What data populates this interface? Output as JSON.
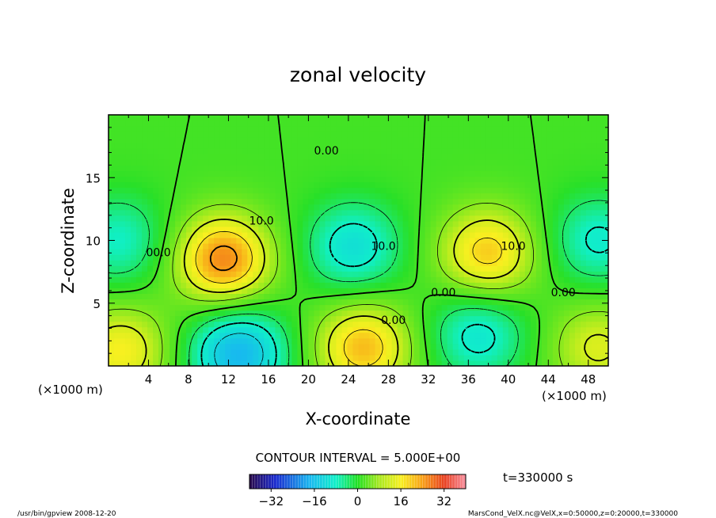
{
  "chart_data": {
    "type": "heatmap",
    "title": "zonal velocity",
    "xlabel": "X-coordinate",
    "ylabel": "Z-coordinate",
    "x_unit_label": "(×1000 m)",
    "y_unit_label": "(×1000 m)",
    "xlim": [
      0,
      50
    ],
    "ylim": [
      0,
      20
    ],
    "x_ticks": [
      "4",
      "8",
      "12",
      "16",
      "20",
      "24",
      "28",
      "32",
      "36",
      "40",
      "44",
      "48"
    ],
    "y_ticks": [
      "5",
      "10",
      "15"
    ],
    "contour_interval_text": "CONTOUR INTERVAL = 5.000E+00",
    "time_text": "t=330000 s",
    "colorbar": {
      "range": [
        -40,
        40
      ],
      "ticks": [
        "−32",
        "−16",
        "0",
        "16",
        "32"
      ],
      "tick_values": [
        -32,
        -16,
        0,
        16,
        32
      ]
    },
    "contour_labels": [
      {
        "text": "0.00",
        "x": 21.8,
        "z": 17.1
      },
      {
        "text": "10.0",
        "x": 15.3,
        "z": 11.5
      },
      {
        "text": "00.0",
        "x": 5.0,
        "z": 9.0
      },
      {
        "text": "10.0",
        "x": 27.5,
        "z": 9.5
      },
      {
        "text": "0.00",
        "x": 33.5,
        "z": 5.8
      },
      {
        "text": "0.00",
        "x": 28.5,
        "z": 3.6
      },
      {
        "text": "10.0",
        "x": 40.5,
        "z": 9.5
      },
      {
        "text": "0.00",
        "x": 45.5,
        "z": 5.8
      }
    ],
    "extrema": [
      {
        "sign": "+",
        "x": 11.5,
        "z": 8.5,
        "value": 22
      },
      {
        "sign": "-",
        "x": 1.0,
        "z": 10.0,
        "value": -10
      },
      {
        "sign": "-",
        "x": 24.5,
        "z": 9.5,
        "value": -13
      },
      {
        "sign": "+",
        "x": 37.9,
        "z": 9.0,
        "value": 17
      },
      {
        "sign": "-",
        "x": 49.0,
        "z": 10.0,
        "value": -11
      },
      {
        "sign": "+",
        "x": 1.2,
        "z": 1.2,
        "value": 14
      },
      {
        "sign": "-",
        "x": 13.0,
        "z": 1.0,
        "value": -20
      },
      {
        "sign": "+",
        "x": 25.5,
        "z": 1.5,
        "value": 18
      },
      {
        "sign": "-",
        "x": 37.0,
        "z": 2.5,
        "value": -12
      },
      {
        "sign": "+",
        "x": 49.0,
        "z": 1.5,
        "value": 11
      }
    ]
  },
  "footer": {
    "left": "/usr/bin/gpview   2008-12-20",
    "right": "MarsCond_VelX.nc@VelX,x=0:50000,z=0:20000,t=330000"
  }
}
